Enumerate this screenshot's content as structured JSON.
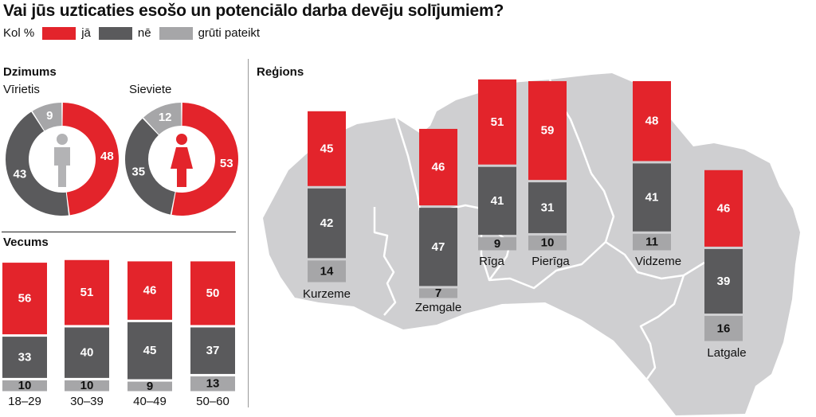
{
  "title": "Vai jūs uzticaties esošo un potenciālo darba devēju solījumiem?",
  "legend": {
    "unit": "Kol %",
    "items": [
      {
        "label": "jā",
        "color": "#e3242b"
      },
      {
        "label": "nē",
        "color": "#5a5a5c"
      },
      {
        "label": "grūti pateikt",
        "color": "#a6a6a8"
      }
    ]
  },
  "sections": {
    "gender": "Dzimums",
    "age": "Vecums",
    "regions": "Reģions"
  },
  "chart_data": [
    {
      "type": "pie",
      "id": "gender",
      "title": "Dzimums",
      "series_names": [
        "jā",
        "nē",
        "grūti pateikt"
      ],
      "groups": [
        {
          "label": "Vīrietis",
          "icon": "male-person-icon",
          "values": [
            48,
            43,
            9
          ]
        },
        {
          "label": "Sieviete",
          "icon": "female-person-icon",
          "values": [
            53,
            35,
            12
          ]
        }
      ]
    },
    {
      "type": "bar",
      "id": "age",
      "title": "Vecums",
      "stacked": true,
      "categories": [
        "18–29",
        "30–39",
        "40–49",
        "50–60"
      ],
      "series": [
        {
          "name": "jā",
          "values": [
            56,
            51,
            46,
            50
          ]
        },
        {
          "name": "nē",
          "values": [
            33,
            40,
            45,
            37
          ]
        },
        {
          "name": "grūti pateikt",
          "values": [
            10,
            10,
            9,
            13
          ]
        }
      ]
    },
    {
      "type": "bar",
      "id": "regions",
      "title": "Reģions",
      "stacked": true,
      "categories": [
        "Kurzeme",
        "Zemgale",
        "Rīga",
        "Pierīga",
        "Vidzeme",
        "Latgale"
      ],
      "series": [
        {
          "name": "jā",
          "values": [
            45,
            46,
            51,
            59,
            48,
            46
          ]
        },
        {
          "name": "nē",
          "values": [
            42,
            47,
            41,
            31,
            41,
            39
          ]
        },
        {
          "name": "grūti pateikt",
          "values": [
            14,
            7,
            9,
            10,
            11,
            16
          ]
        }
      ]
    }
  ]
}
